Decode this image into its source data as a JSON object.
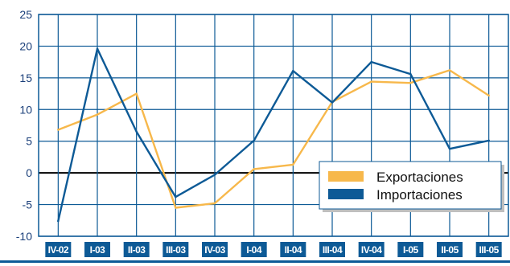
{
  "chart_data": {
    "type": "line",
    "title": "",
    "xlabel": "",
    "ylabel": "",
    "categories": [
      "IV-02",
      "I-03",
      "II-03",
      "III-03",
      "IV-03",
      "I-04",
      "II-04",
      "III-04",
      "IV-04",
      "I-05",
      "II-05",
      "III-05"
    ],
    "ylim": [
      -10,
      25
    ],
    "yticks": [
      25,
      20,
      15,
      10,
      5,
      0,
      -5,
      -10
    ],
    "grid": true,
    "legend_position": "bottom-right",
    "series": [
      {
        "name": "Exportaciones",
        "color": "#f7b84b",
        "values": [
          6.8,
          9.2,
          12.5,
          -5.5,
          -4.8,
          0.6,
          1.3,
          11.2,
          14.4,
          14.2,
          16.2,
          12.2
        ]
      },
      {
        "name": "Importaciones",
        "color": "#0d5a96",
        "values": [
          -7.6,
          19.6,
          6.5,
          -3.8,
          -0.3,
          5.1,
          16.1,
          11.1,
          17.5,
          15.6,
          3.8,
          5.1
        ]
      }
    ]
  },
  "colors": {
    "grid": "#0d5a96",
    "tick_background": "#0d5a96",
    "zero_line": "#000000",
    "legend_shadow": "#bfbfbf"
  }
}
